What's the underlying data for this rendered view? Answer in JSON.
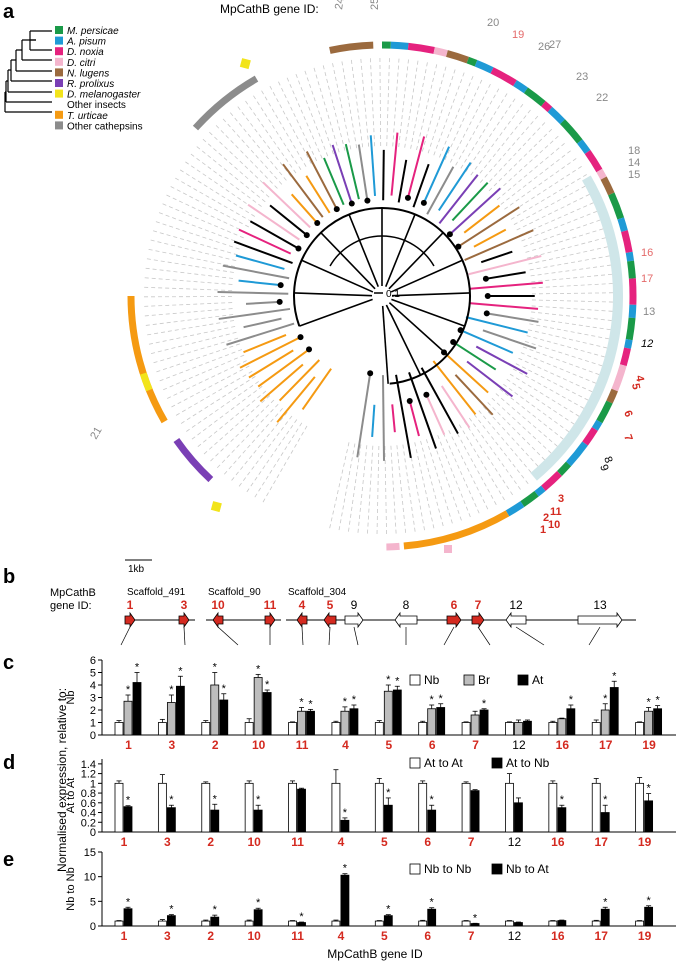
{
  "panels": {
    "a": "a",
    "b": "b",
    "c": "c",
    "d": "d",
    "e": "e"
  },
  "panel_a": {
    "title": "MpCathB gene ID:",
    "scale_bar": "0.1",
    "legend": [
      {
        "label": "M. persicae",
        "color": "#1a9a48"
      },
      {
        "label": "A. pisum",
        "color": "#1f9ad6"
      },
      {
        "label": "D. noxia",
        "color": "#e5227e"
      },
      {
        "label": "D. citri",
        "color": "#f4b5cd"
      },
      {
        "label": "N. lugens",
        "color": "#9b6a3e"
      },
      {
        "label": "R. prolixus",
        "color": "#7a3fb5"
      },
      {
        "label": "D. melanogaster",
        "color": "#f2e41b"
      },
      {
        "label": "Other insects",
        "color": ""
      },
      {
        "label": "T. urticae",
        "color": "#f59a12"
      },
      {
        "label": "Other cathepsins",
        "color": "#8c8c8c"
      }
    ],
    "ring_labels": [
      {
        "text": "24",
        "color": "#888888"
      },
      {
        "text": "25",
        "color": "#888888"
      },
      {
        "text": "20",
        "color": "#888888"
      },
      {
        "text": "19",
        "color": "#e46a6a"
      },
      {
        "text": "26",
        "color": "#888888"
      },
      {
        "text": "27",
        "color": "#888888"
      },
      {
        "text": "23",
        "color": "#888888"
      },
      {
        "text": "22",
        "color": "#888888"
      },
      {
        "text": "18",
        "color": "#888888"
      },
      {
        "text": "14",
        "color": "#888888"
      },
      {
        "text": "15",
        "color": "#888888"
      },
      {
        "text": "16",
        "color": "#e46a6a"
      },
      {
        "text": "17",
        "color": "#e46a6a"
      },
      {
        "text": "13",
        "color": "#888888"
      },
      {
        "text": "12",
        "color": "#000000"
      },
      {
        "text": "4",
        "color": "#d42a20"
      },
      {
        "text": "5",
        "color": "#d42a20"
      },
      {
        "text": "6",
        "color": "#d42a20"
      },
      {
        "text": "7",
        "color": "#d42a20"
      },
      {
        "text": "8",
        "color": "#000000"
      },
      {
        "text": "9",
        "color": "#000000"
      },
      {
        "text": "10",
        "color": "#d42a20"
      },
      {
        "text": "11",
        "color": "#d42a20"
      },
      {
        "text": "3",
        "color": "#d42a20"
      },
      {
        "text": "1",
        "color": "#d42a20"
      },
      {
        "text": "2",
        "color": "#d42a20"
      },
      {
        "text": "21",
        "color": "#888888"
      }
    ]
  },
  "panel_b": {
    "scale": "1kb",
    "row_label_1": "MpCathB",
    "row_label_2": "gene ID:",
    "scaffolds": [
      "Scaffold_491",
      "Scaffold_90",
      "Scaffold_304"
    ],
    "genes_top": [
      {
        "id": "1",
        "red": true
      },
      {
        "id": "3",
        "red": true
      },
      {
        "id": "10",
        "red": true
      },
      {
        "id": "11",
        "red": true
      },
      {
        "id": "4",
        "red": true
      },
      {
        "id": "5",
        "red": true
      },
      {
        "id": "9",
        "red": false
      },
      {
        "id": "8",
        "red": false
      },
      {
        "id": "6",
        "red": true
      },
      {
        "id": "7",
        "red": true
      },
      {
        "id": "12",
        "red": false
      },
      {
        "id": "13",
        "red": false
      }
    ]
  },
  "y_axis_shared": "Normalised expression, relative to:",
  "x_axis_title": "MpCathB gene ID",
  "chart_data": [
    {
      "type": "bar",
      "panel": "c",
      "ylabel": "Nb",
      "ylim": [
        0,
        6
      ],
      "yticks": [
        0,
        1,
        2,
        3,
        4,
        5,
        6
      ],
      "categories": [
        "1",
        "3",
        "2",
        "10",
        "11",
        "4",
        "5",
        "6",
        "7",
        "12",
        "16",
        "17",
        "19"
      ],
      "category_red": [
        true,
        true,
        true,
        true,
        true,
        true,
        true,
        true,
        true,
        false,
        true,
        true,
        true
      ],
      "series": [
        {
          "name": "Nb",
          "color": "#ffffff",
          "values": [
            1.0,
            1.0,
            1.0,
            1.0,
            1.0,
            1.0,
            1.0,
            1.0,
            1.0,
            1.0,
            1.0,
            1.0,
            1.0
          ],
          "errors": [
            0.15,
            0.25,
            0.15,
            0.3,
            0.05,
            0.1,
            0.15,
            0.1,
            0.05,
            0.05,
            0.1,
            0.2,
            0.05
          ]
        },
        {
          "name": "Br",
          "color": "#bdbdbd",
          "values": [
            2.7,
            2.6,
            4.0,
            4.6,
            1.9,
            1.9,
            3.5,
            2.1,
            1.6,
            1.0,
            1.3,
            2.0,
            1.9
          ],
          "errors": [
            0.5,
            0.6,
            1.0,
            0.25,
            0.3,
            0.35,
            0.5,
            0.3,
            0.3,
            0.2,
            0.05,
            0.5,
            0.3
          ]
        },
        {
          "name": "At",
          "color": "#000000",
          "values": [
            4.2,
            3.9,
            2.8,
            3.4,
            1.9,
            2.1,
            3.6,
            2.2,
            2.0,
            1.1,
            2.1,
            3.8,
            2.1
          ],
          "errors": [
            0.8,
            0.8,
            0.5,
            0.2,
            0.15,
            0.3,
            0.3,
            0.3,
            0.1,
            0.1,
            0.3,
            0.5,
            0.25
          ]
        }
      ],
      "significance": [
        [
          false,
          true,
          true
        ],
        [
          false,
          true,
          true
        ],
        [
          false,
          true,
          true
        ],
        [
          false,
          true,
          true
        ],
        [
          false,
          true,
          true
        ],
        [
          false,
          true,
          true
        ],
        [
          false,
          true,
          true
        ],
        [
          false,
          true,
          true
        ],
        [
          false,
          false,
          true
        ],
        [
          false,
          false,
          false
        ],
        [
          false,
          false,
          true
        ],
        [
          false,
          true,
          true
        ],
        [
          false,
          true,
          true
        ]
      ]
    },
    {
      "type": "bar",
      "panel": "d",
      "ylabel": "At to At",
      "ylim": [
        0,
        1.5
      ],
      "yticks": [
        0,
        0.2,
        0.4,
        0.6,
        0.8,
        1.0,
        1.2,
        1.4
      ],
      "categories": [
        "1",
        "3",
        "2",
        "10",
        "11",
        "4",
        "5",
        "6",
        "7",
        "12",
        "16",
        "17",
        "19"
      ],
      "category_red": [
        true,
        true,
        true,
        true,
        true,
        true,
        true,
        true,
        true,
        false,
        true,
        true,
        true
      ],
      "series": [
        {
          "name": "At to At",
          "color": "#ffffff",
          "values": [
            1.0,
            1.0,
            1.0,
            1.0,
            1.0,
            1.0,
            1.0,
            1.0,
            1.0,
            1.0,
            1.0,
            1.0,
            1.0
          ],
          "errors": [
            0.05,
            0.18,
            0.03,
            0.05,
            0.05,
            0.28,
            0.1,
            0.05,
            0.03,
            0.2,
            0.05,
            0.1,
            0.12
          ]
        },
        {
          "name": "At to Nb",
          "color": "#000000",
          "values": [
            0.52,
            0.5,
            0.45,
            0.45,
            0.88,
            0.24,
            0.55,
            0.45,
            0.85,
            0.6,
            0.5,
            0.4,
            0.64
          ],
          "errors": [
            0.02,
            0.05,
            0.12,
            0.1,
            0.02,
            0.05,
            0.15,
            0.1,
            0.02,
            0.1,
            0.05,
            0.15,
            0.15
          ]
        }
      ],
      "significance": [
        [
          false,
          true
        ],
        [
          false,
          true
        ],
        [
          false,
          true
        ],
        [
          false,
          true
        ],
        [
          false,
          false
        ],
        [
          false,
          true
        ],
        [
          false,
          true
        ],
        [
          false,
          true
        ],
        [
          false,
          false
        ],
        [
          false,
          false
        ],
        [
          false,
          true
        ],
        [
          false,
          true
        ],
        [
          false,
          true
        ]
      ]
    },
    {
      "type": "bar",
      "panel": "e",
      "ylabel": "Nb to Nb",
      "ylim": [
        0,
        15
      ],
      "yticks": [
        0,
        5,
        10,
        15
      ],
      "categories": [
        "1",
        "3",
        "2",
        "10",
        "11",
        "4",
        "5",
        "6",
        "7",
        "12",
        "16",
        "17",
        "19"
      ],
      "category_red": [
        true,
        true,
        true,
        true,
        true,
        true,
        true,
        true,
        true,
        false,
        true,
        true,
        true
      ],
      "series": [
        {
          "name": "Nb to Nb",
          "color": "#ffffff",
          "values": [
            1.0,
            1.0,
            1.0,
            1.0,
            1.0,
            1.0,
            1.0,
            1.0,
            1.0,
            1.0,
            1.0,
            1.0,
            1.0
          ],
          "errors": [
            0.1,
            0.3,
            0.2,
            0.2,
            0.1,
            0.2,
            0.1,
            0.15,
            0.1,
            0.1,
            0.1,
            0.15,
            0.1
          ]
        },
        {
          "name": "Nb to At",
          "color": "#000000",
          "values": [
            3.5,
            2.1,
            1.8,
            3.3,
            0.7,
            10.3,
            2.1,
            3.4,
            0.5,
            0.7,
            1.1,
            3.4,
            3.8
          ],
          "errors": [
            0.3,
            0.2,
            0.4,
            0.3,
            0.1,
            0.3,
            0.2,
            0.3,
            0.05,
            0.1,
            0.1,
            0.4,
            0.3
          ]
        }
      ],
      "significance": [
        [
          false,
          true
        ],
        [
          false,
          true
        ],
        [
          false,
          true
        ],
        [
          false,
          true
        ],
        [
          false,
          true
        ],
        [
          false,
          true
        ],
        [
          false,
          true
        ],
        [
          false,
          true
        ],
        [
          false,
          true
        ],
        [
          false,
          false
        ],
        [
          false,
          false
        ],
        [
          false,
          true
        ],
        [
          false,
          true
        ]
      ]
    }
  ]
}
